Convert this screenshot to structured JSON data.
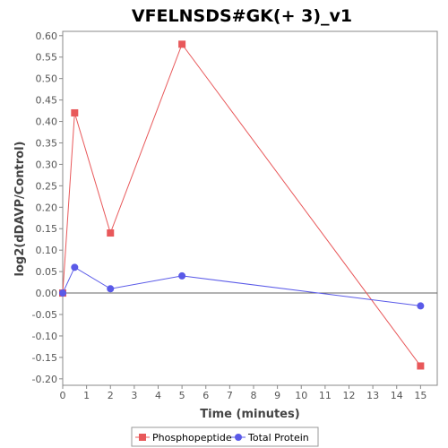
{
  "chart_data": {
    "type": "line",
    "title": "VFELNSDS#GK(+ 3)_v1",
    "xlabel": "Time (minutes)",
    "ylabel": "log2(dDAVP/Control)",
    "xlim": [
      0,
      15.7
    ],
    "ylim": [
      -0.215,
      0.61
    ],
    "x_ticks": [
      0,
      1,
      2,
      3,
      4,
      5,
      6,
      7,
      8,
      9,
      10,
      11,
      12,
      13,
      14,
      15
    ],
    "x_tick_labels": [
      "0",
      "1",
      "2",
      "3",
      "4",
      "5",
      "6",
      "7",
      "8",
      "9",
      "10",
      "11",
      "12",
      "13",
      "14",
      "15"
    ],
    "y_ticks": [
      -0.2,
      -0.15,
      -0.1,
      -0.05,
      0.0,
      0.05,
      0.1,
      0.15,
      0.2,
      0.25,
      0.3,
      0.35,
      0.4,
      0.45,
      0.5,
      0.55,
      0.6
    ],
    "y_tick_labels": [
      "-0.20",
      "-0.15",
      "-0.10",
      "-0.05",
      "0.00",
      "0.05",
      "0.10",
      "0.15",
      "0.20",
      "0.25",
      "0.30",
      "0.35",
      "0.40",
      "0.45",
      "0.50",
      "0.55",
      "0.60"
    ],
    "grid": false,
    "legend_position": "bottom",
    "series": [
      {
        "name": "Phosphopeptide",
        "color": "#e8585a",
        "marker": "square",
        "x": [
          0,
          0.5,
          2,
          5,
          15
        ],
        "y": [
          0.0,
          0.42,
          0.14,
          0.58,
          -0.17
        ]
      },
      {
        "name": "Total Protein",
        "color": "#5a5ae8",
        "marker": "circle",
        "x": [
          0,
          0.5,
          2,
          5,
          15
        ],
        "y": [
          0.0,
          0.06,
          0.01,
          0.04,
          -0.03
        ]
      }
    ]
  }
}
